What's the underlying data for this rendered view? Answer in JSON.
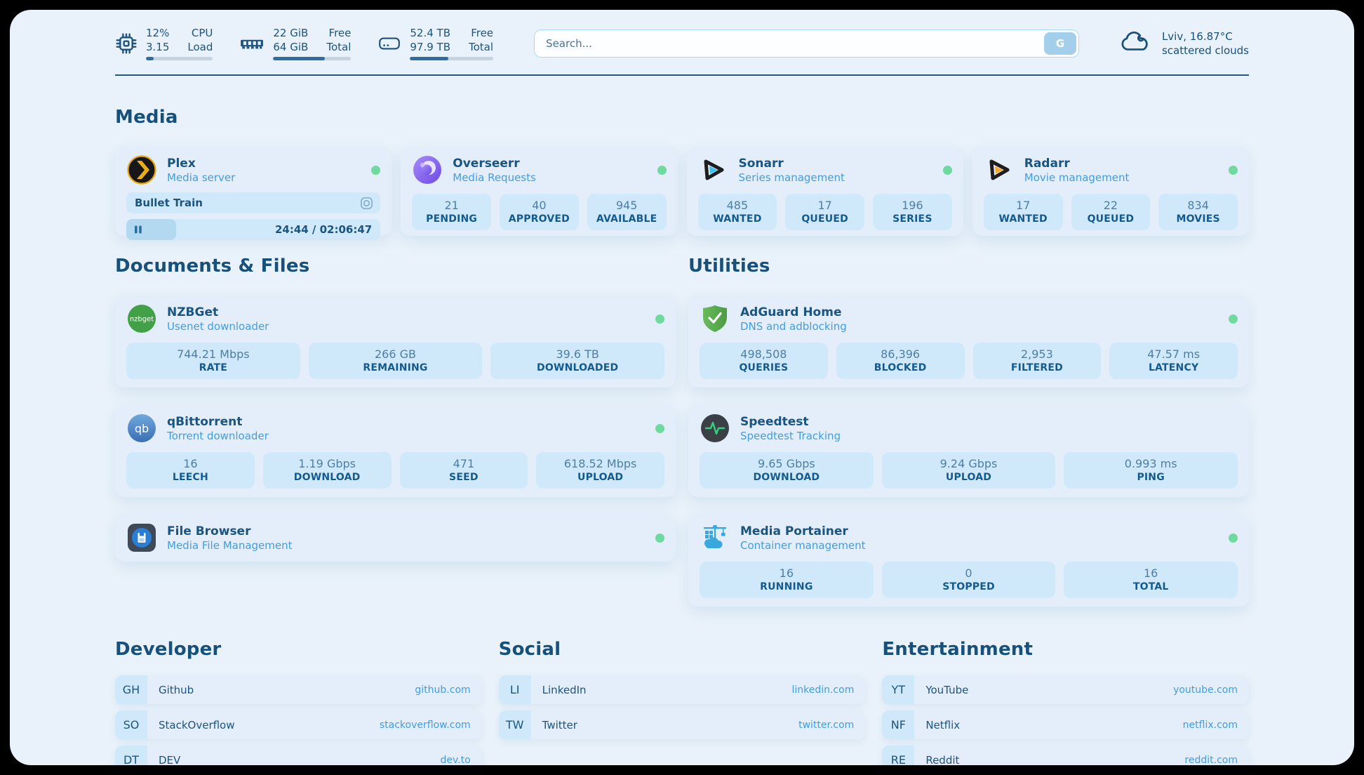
{
  "colors": {
    "page_background": "#e9f2fa",
    "card_background": "#e4eefa",
    "tile_background": "#cfe9fb",
    "text_dark": "#1a5480",
    "text_blue": "#429de0",
    "online_green": "#6fd99f",
    "bar_fill": "#2e6e9e"
  },
  "header": {
    "cpu": {
      "value": "12%",
      "load": "3.15",
      "label_top": "CPU",
      "label_bottom": "Load",
      "progress": 12
    },
    "ram": {
      "free": "22 GiB",
      "total": "64 GiB",
      "label_top": "Free",
      "label_bottom": "Total",
      "progress": 66
    },
    "disk": {
      "free": "52.4 TB",
      "total": "97.9 TB",
      "label_top": "Free",
      "label_bottom": "Total",
      "progress": 46
    },
    "search": {
      "placeholder": "Search...",
      "button_label": "G"
    },
    "weather": {
      "location_temp": "Lviv, 16.87°C",
      "condition": "scattered clouds"
    }
  },
  "media": {
    "title": "Media",
    "plex": {
      "name": "Plex",
      "subtitle": "Media server",
      "now_playing": "Bullet Train",
      "time_display": "24:44 / 02:06:47",
      "progress": 19.5
    },
    "overseerr": {
      "name": "Overseerr",
      "subtitle": "Media Requests",
      "stats": [
        {
          "value": "21",
          "label": "PENDING"
        },
        {
          "value": "40",
          "label": "APPROVED"
        },
        {
          "value": "945",
          "label": "AVAILABLE"
        }
      ]
    },
    "sonarr": {
      "name": "Sonarr",
      "subtitle": "Series management",
      "stats": [
        {
          "value": "485",
          "label": "WANTED"
        },
        {
          "value": "17",
          "label": "QUEUED"
        },
        {
          "value": "196",
          "label": "SERIES"
        }
      ]
    },
    "radarr": {
      "name": "Radarr",
      "subtitle": "Movie management",
      "stats": [
        {
          "value": "17",
          "label": "WANTED"
        },
        {
          "value": "22",
          "label": "QUEUED"
        },
        {
          "value": "834",
          "label": "MOVIES"
        }
      ]
    }
  },
  "documents": {
    "title": "Documents & Files",
    "nzbget": {
      "name": "NZBGet",
      "subtitle": "Usenet downloader",
      "stats": [
        {
          "value": "744.21 Mbps",
          "label": "RATE"
        },
        {
          "value": "266 GB",
          "label": "REMAINING"
        },
        {
          "value": "39.6 TB",
          "label": "DOWNLOADED"
        }
      ]
    },
    "qbittorrent": {
      "name": "qBittorrent",
      "subtitle": "Torrent downloader",
      "stats": [
        {
          "value": "16",
          "label": "LEECH"
        },
        {
          "value": "1.19 Gbps",
          "label": "DOWNLOAD"
        },
        {
          "value": "471",
          "label": "SEED"
        },
        {
          "value": "618.52 Mbps",
          "label": "UPLOAD"
        }
      ]
    },
    "filebrowser": {
      "name": "File Browser",
      "subtitle": "Media File Management"
    }
  },
  "utilities": {
    "title": "Utilities",
    "adguard": {
      "name": "AdGuard Home",
      "subtitle": "DNS and adblocking",
      "stats": [
        {
          "value": "498,508",
          "label": "QUERIES"
        },
        {
          "value": "86,396",
          "label": "BLOCKED"
        },
        {
          "value": "2,953",
          "label": "FILTERED"
        },
        {
          "value": "47.57 ms",
          "label": "LATENCY"
        }
      ]
    },
    "speedtest": {
      "name": "Speedtest",
      "subtitle": "Speedtest Tracking",
      "stats": [
        {
          "value": "9.65 Gbps",
          "label": "DOWNLOAD"
        },
        {
          "value": "9.24 Gbps",
          "label": "UPLOAD"
        },
        {
          "value": "0.993 ms",
          "label": "PING"
        }
      ]
    },
    "portainer": {
      "name": "Media Portainer",
      "subtitle": "Container management",
      "stats": [
        {
          "value": "16",
          "label": "RUNNING"
        },
        {
          "value": "0",
          "label": "STOPPED"
        },
        {
          "value": "16",
          "label": "TOTAL"
        }
      ]
    }
  },
  "bookmarks": {
    "developer": {
      "title": "Developer",
      "links": [
        {
          "abbr": "GH",
          "name": "Github",
          "url": "github.com"
        },
        {
          "abbr": "SO",
          "name": "StackOverflow",
          "url": "stackoverflow.com"
        },
        {
          "abbr": "DT",
          "name": "DEV",
          "url": "dev.to"
        }
      ]
    },
    "social": {
      "title": "Social",
      "links": [
        {
          "abbr": "LI",
          "name": "LinkedIn",
          "url": "linkedin.com"
        },
        {
          "abbr": "TW",
          "name": "Twitter",
          "url": "twitter.com"
        }
      ]
    },
    "entertainment": {
      "title": "Entertainment",
      "links": [
        {
          "abbr": "YT",
          "name": "YouTube",
          "url": "youtube.com"
        },
        {
          "abbr": "NF",
          "name": "Netflix",
          "url": "netflix.com"
        },
        {
          "abbr": "RE",
          "name": "Reddit",
          "url": "reddit.com"
        }
      ]
    }
  }
}
